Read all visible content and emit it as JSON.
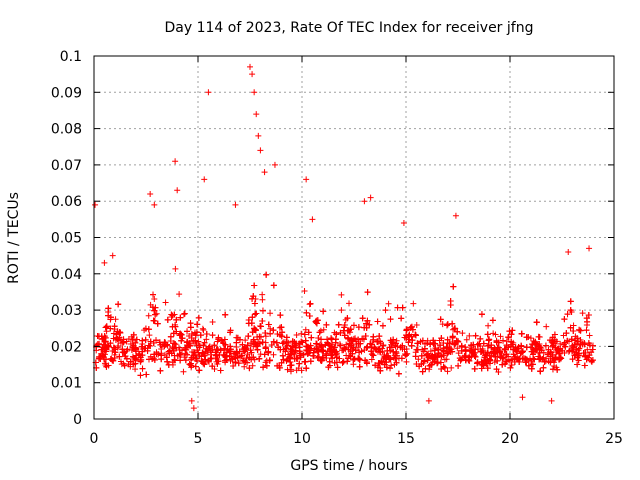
{
  "chart_data": {
    "type": "scatter",
    "title": "Day 114 of 2023, Rate Of TEC Index for receiver jfng",
    "xlabel": "GPS time / hours",
    "ylabel": "ROTI / TECUs",
    "xlim": [
      0,
      25
    ],
    "ylim": [
      0,
      0.1
    ],
    "xticks": [
      0,
      5,
      10,
      15,
      20,
      25
    ],
    "xtick_labels": [
      "0",
      "5",
      "10",
      "15",
      "20",
      "25"
    ],
    "yticks": [
      0,
      0.01,
      0.02,
      0.03,
      0.04,
      0.05,
      0.06,
      0.07,
      0.08,
      0.09,
      0.1
    ],
    "ytick_labels": [
      "0",
      "0.01",
      "0.02",
      "0.03",
      "0.04",
      "0.05",
      "0.06",
      "0.07",
      "0.08",
      "0.09",
      "0.1"
    ],
    "grid": true,
    "marker": "plus",
    "color": "#ff0000",
    "series": [
      {
        "name": "ROTI",
        "x_range": [
          0,
          24
        ],
        "typical_band": [
          0.01,
          0.025
        ],
        "notable_points": [
          {
            "x": 0.05,
            "y": 0.059
          },
          {
            "x": 0.5,
            "y": 0.043
          },
          {
            "x": 0.9,
            "y": 0.045
          },
          {
            "x": 2.7,
            "y": 0.062
          },
          {
            "x": 2.9,
            "y": 0.059
          },
          {
            "x": 3.9,
            "y": 0.071
          },
          {
            "x": 4.0,
            "y": 0.063
          },
          {
            "x": 4.3,
            "y": 0.013
          },
          {
            "x": 4.7,
            "y": 0.005
          },
          {
            "x": 4.8,
            "y": 0.003
          },
          {
            "x": 5.3,
            "y": 0.066
          },
          {
            "x": 5.5,
            "y": 0.09
          },
          {
            "x": 6.8,
            "y": 0.059
          },
          {
            "x": 7.5,
            "y": 0.097
          },
          {
            "x": 7.6,
            "y": 0.095
          },
          {
            "x": 7.7,
            "y": 0.09
          },
          {
            "x": 7.8,
            "y": 0.084
          },
          {
            "x": 7.9,
            "y": 0.078
          },
          {
            "x": 8.0,
            "y": 0.074
          },
          {
            "x": 8.2,
            "y": 0.068
          },
          {
            "x": 8.7,
            "y": 0.07
          },
          {
            "x": 10.2,
            "y": 0.066
          },
          {
            "x": 10.5,
            "y": 0.055
          },
          {
            "x": 13.0,
            "y": 0.06
          },
          {
            "x": 13.3,
            "y": 0.061
          },
          {
            "x": 14.9,
            "y": 0.054
          },
          {
            "x": 16.1,
            "y": 0.005
          },
          {
            "x": 17.4,
            "y": 0.056
          },
          {
            "x": 20.6,
            "y": 0.006
          },
          {
            "x": 22.0,
            "y": 0.005
          },
          {
            "x": 22.8,
            "y": 0.046
          },
          {
            "x": 23.8,
            "y": 0.047
          }
        ]
      }
    ]
  }
}
